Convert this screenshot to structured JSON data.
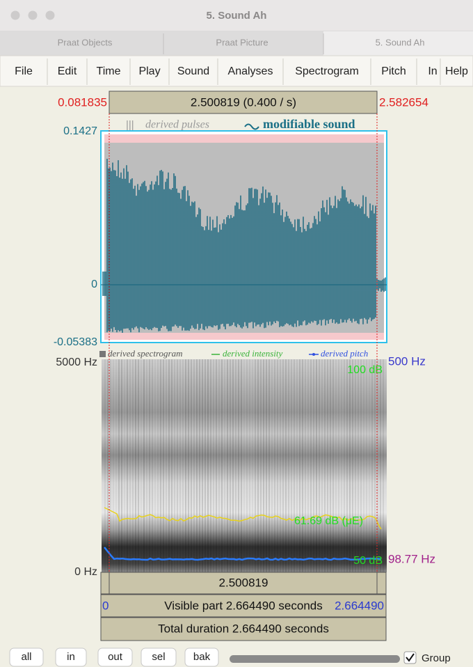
{
  "window": {
    "title": "5. Sound Ah"
  },
  "tabs": [
    "Praat Objects",
    "Praat Picture",
    "5. Sound Ah"
  ],
  "menu": [
    "File",
    "Edit",
    "Time",
    "Play",
    "Sound",
    "Analyses",
    "Spectrogram",
    "Pitch",
    "In",
    "Help"
  ],
  "selection": {
    "start": "0.081835",
    "label": "2.500819 (0.400 / s)",
    "end": "2.582654"
  },
  "waveform": {
    "legend_pulses": "derived pulses",
    "legend_sound": "modifiable sound",
    "ymax": "0.1427",
    "zero": "0",
    "ymin": "-0.05383"
  },
  "spectrogram": {
    "legend_spectrogram": "derived spectrogram",
    "legend_intensity": "derived intensity",
    "legend_pitch": "derived pitch",
    "fmax": "5000 Hz",
    "fmin": "0 Hz",
    "pitch_max": "500 Hz",
    "intensity_max": "100 dB",
    "intensity_value": "61.69 dB (μE)",
    "intensity_min": "50 dB",
    "pitch_value": "98.77 Hz"
  },
  "bars": {
    "selection_duration": "2.500819",
    "visible_start": "0",
    "visible": "Visible part 2.664490 seconds",
    "visible_end": "2.664490",
    "total": "Total duration 2.664490 seconds"
  },
  "buttons": [
    "all",
    "in",
    "out",
    "sel",
    "bak"
  ],
  "group": "Group"
}
